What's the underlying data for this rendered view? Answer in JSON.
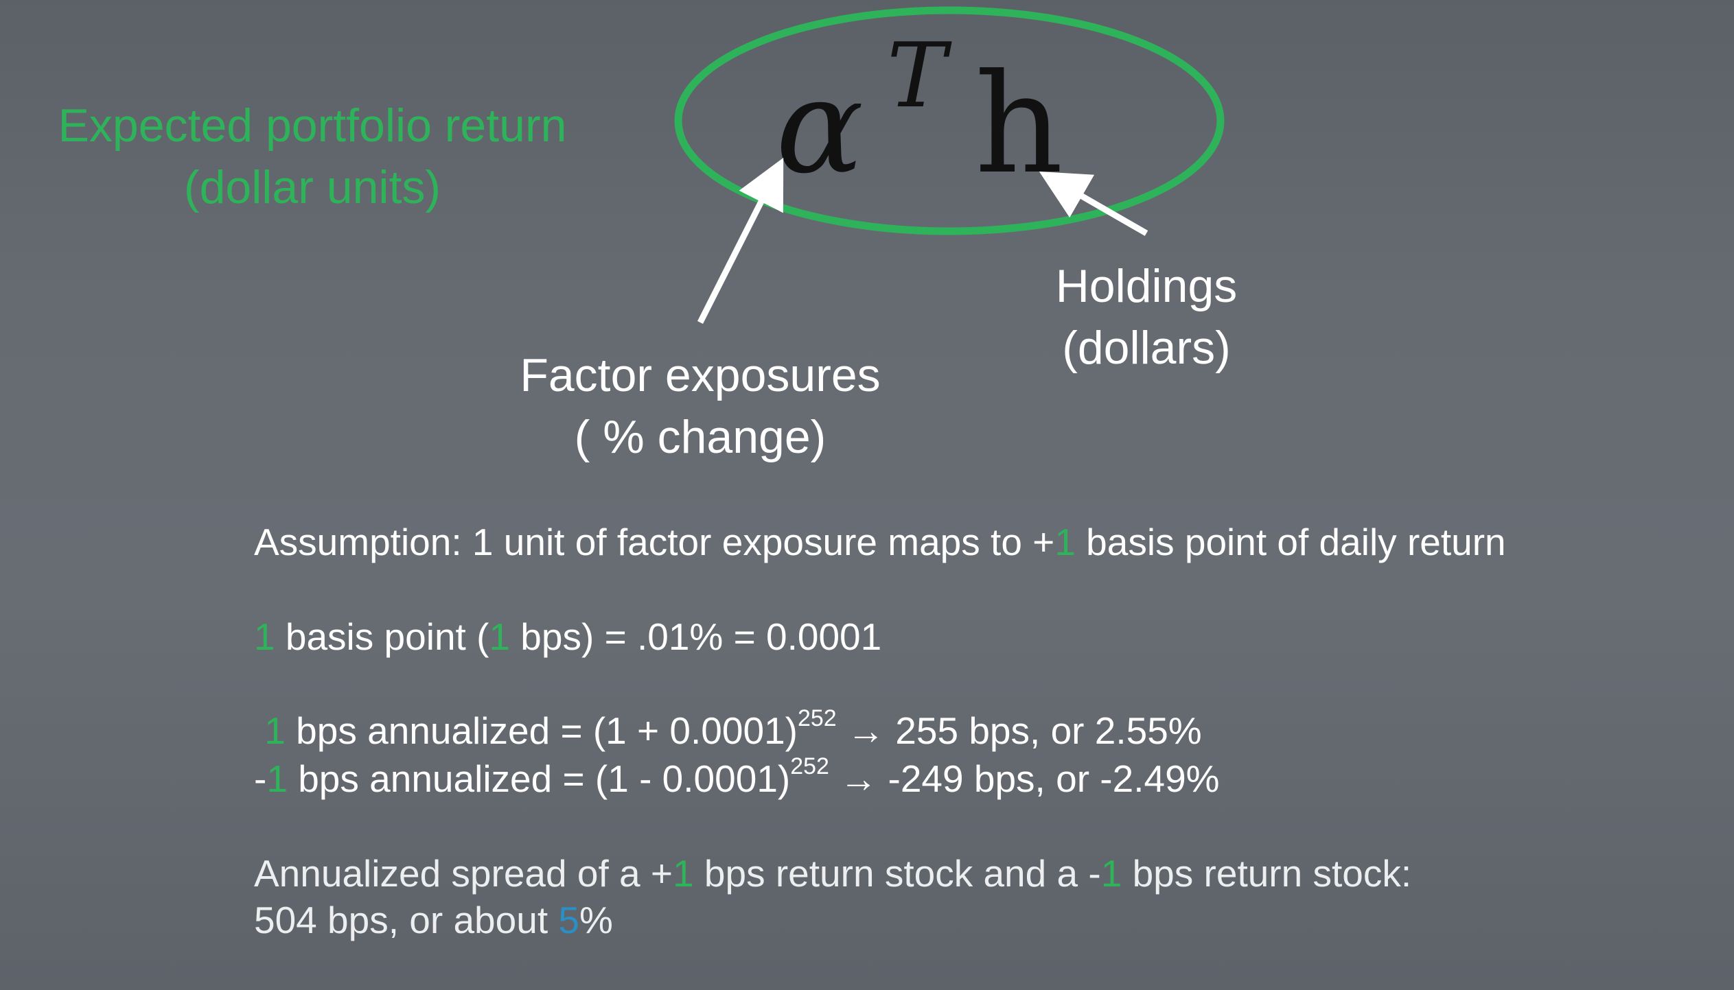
{
  "left_label": {
    "line1": "Expected portfolio return",
    "line2": "(dollar units)"
  },
  "formula": {
    "alpha": "α",
    "superscript": "T",
    "h": "h"
  },
  "holdings_label": {
    "line1": "Holdings",
    "line2": "(dollars)"
  },
  "factor_label": {
    "line1": "Factor exposures",
    "line2": "( % change)"
  },
  "assumption": {
    "part1": "Assumption: 1 unit of factor exposure maps to +",
    "one": "1",
    "part2": " basis point of daily return"
  },
  "bps_definition": {
    "one_a": "1",
    "part1": " basis point (",
    "one_b": "1",
    "part2": " bps) = .01% = 0.0001"
  },
  "positive_annualized": {
    "one": "1",
    "part1": " bps annualized = (1 + 0.0001)",
    "exponent": "252",
    "part2": " → 255 bps, or 2.55%"
  },
  "negative_annualized": {
    "minus": "-",
    "one": "1",
    "part1": " bps annualized = (1 - 0.0001)",
    "exponent": "252",
    "part2": " → -249 bps, or -2.49%"
  },
  "spread": {
    "part1": "Annualized spread of a +",
    "one_a": "1",
    "part2": " bps return stock and a -",
    "one_b": "1",
    "part3": " bps return stock:",
    "line2_part1": "504 bps, or about ",
    "five": "5",
    "line2_part2": "%"
  },
  "colors": {
    "accent_green": "#2fb35a",
    "accent_blue": "#2a8fc4",
    "formula_text": "#111111",
    "background": "#63686f"
  }
}
